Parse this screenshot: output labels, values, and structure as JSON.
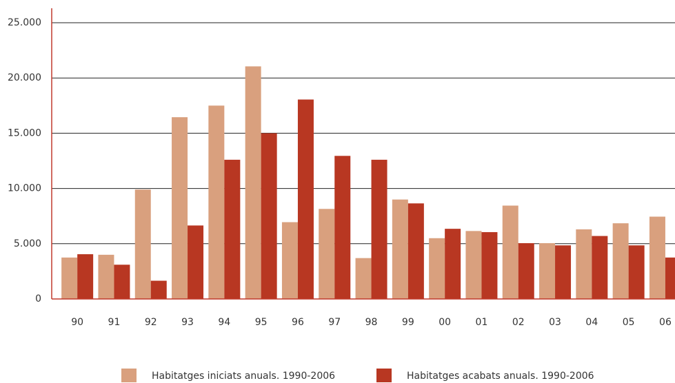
{
  "chart_data": {
    "type": "bar",
    "categories": [
      "90",
      "91",
      "92",
      "93",
      "94",
      "95",
      "96",
      "97",
      "98",
      "99",
      "00",
      "01",
      "02",
      "03",
      "04",
      "05",
      "06"
    ],
    "series": [
      {
        "name": "Habitatges iniciats anuals. 1990-2006",
        "color": "#d9a07e",
        "values": [
          3750,
          4000,
          9900,
          16450,
          17500,
          21050,
          6950,
          8150,
          3700,
          9000,
          5500,
          6150,
          8450,
          5050,
          6300,
          6850,
          7450
        ]
      },
      {
        "name": "Habitatges acabats anuals. 1990-2006",
        "color": "#b83722",
        "values": [
          4050,
          3100,
          1650,
          6650,
          12600,
          15000,
          18050,
          12950,
          12600,
          8650,
          6350,
          6050,
          5050,
          4850,
          5700,
          4850,
          3750
        ]
      }
    ],
    "ylim": [
      0,
      25000
    ],
    "yticks": [
      0,
      {
        "value": 5000,
        "label": "5.000"
      },
      {
        "value": 10000,
        "label": "10.000"
      },
      {
        "value": 15000,
        "label": "15.000"
      },
      {
        "value": 20000,
        "label": "20.000"
      },
      {
        "value": 25000,
        "label": "25.000"
      }
    ],
    "grid": true,
    "legend": "bottom"
  }
}
